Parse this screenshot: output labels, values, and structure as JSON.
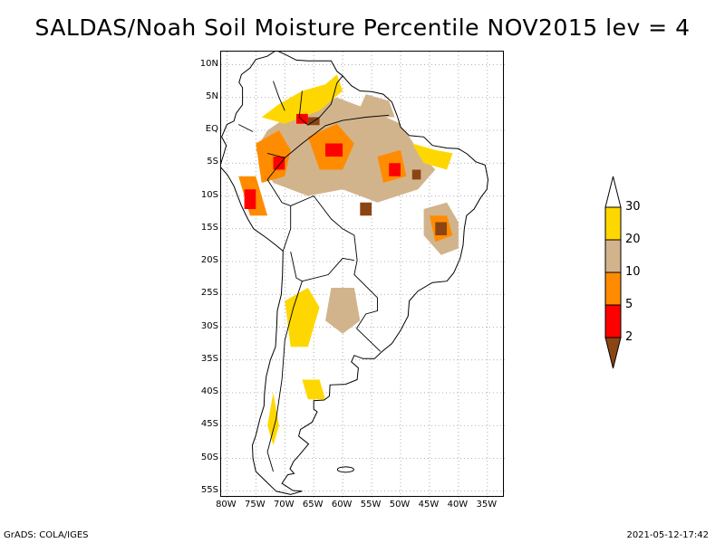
{
  "title": "SALDAS/Noah Soil Moisture Percentile NOV2015 lev = 4",
  "map": {
    "lat_labels": [
      "10N",
      "5N",
      "EQ",
      "5S",
      "10S",
      "15S",
      "20S",
      "25S",
      "30S",
      "35S",
      "40S",
      "45S",
      "50S",
      "55S"
    ],
    "lat_values": [
      10,
      5,
      0,
      -5,
      -10,
      -15,
      -20,
      -25,
      -30,
      -35,
      -40,
      -45,
      -50,
      -55
    ],
    "lon_labels": [
      "80W",
      "75W",
      "70W",
      "65W",
      "60W",
      "55W",
      "50W",
      "45W",
      "40W",
      "35W"
    ],
    "lon_values": [
      -80,
      -75,
      -70,
      -65,
      -60,
      -55,
      -50,
      -45,
      -40,
      -35
    ],
    "extent": {
      "lon_min": -81,
      "lon_max": -32,
      "lat_min": -56,
      "lat_max": 12
    }
  },
  "colorbar": {
    "labels": [
      "30",
      "20",
      "10",
      "5",
      "2"
    ],
    "colors": [
      "#ffd700",
      "#d2b48c",
      "#ff8c00",
      "#ff0000",
      "#8b4513"
    ]
  },
  "footer": {
    "left": "GrADS: COLA/IGES",
    "right": "2021-05-12-17:42"
  }
}
